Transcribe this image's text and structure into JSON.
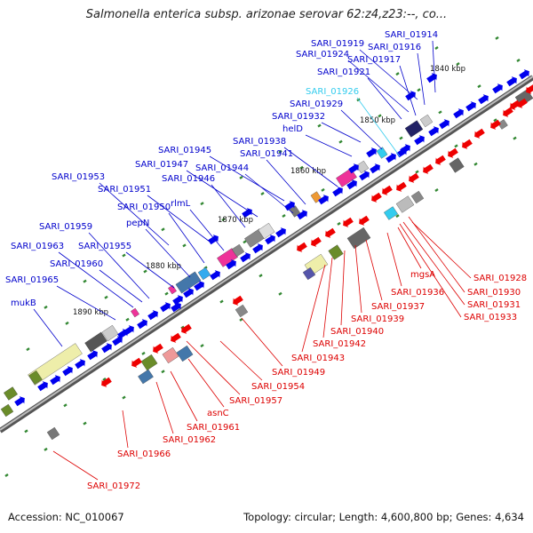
{
  "title": "Salmonella enterica subsp. arizonae serovar 62:z4,z23:--, co...",
  "footer": {
    "accession": "Accession: NC_010067",
    "summary": "Topology: circular; Length: 4,600,800 bp; Genes: 4,634"
  },
  "colors": {
    "forward_label": "#0000cc",
    "reverse_label": "#dd0000",
    "highlight_label": "#33ccee",
    "forward_arrow": "#0000ee",
    "reverse_arrow": "#ee0000",
    "backbone": "#888888",
    "tick": "#338833"
  },
  "scale_marks": [
    {
      "label": "1840 kbp"
    },
    {
      "label": "1850 kbp"
    },
    {
      "label": "1860 kbp"
    },
    {
      "label": "1870 kbp"
    },
    {
      "label": "1880 kbp"
    },
    {
      "label": "1890 kbp"
    }
  ],
  "forward_labels": [
    {
      "name": "SARI_01914",
      "color": "#0000cc"
    },
    {
      "name": "SARI_01919",
      "color": "#0000cc"
    },
    {
      "name": "SARI_01916",
      "color": "#0000cc"
    },
    {
      "name": "SARI_01924",
      "color": "#0000cc"
    },
    {
      "name": "SARI_01917",
      "color": "#0000cc"
    },
    {
      "name": "SARI_01921",
      "color": "#0000cc"
    },
    {
      "name": "SARI_01926",
      "color": "#33ccee"
    },
    {
      "name": "SARI_01929",
      "color": "#0000cc"
    },
    {
      "name": "SARI_01932",
      "color": "#0000cc"
    },
    {
      "name": "helD",
      "color": "#0000cc"
    },
    {
      "name": "SARI_01938",
      "color": "#0000cc"
    },
    {
      "name": "SARI_01945",
      "color": "#0000cc"
    },
    {
      "name": "SARI_01941",
      "color": "#0000cc"
    },
    {
      "name": "SARI_01947",
      "color": "#0000cc"
    },
    {
      "name": "SARI_01944",
      "color": "#0000cc"
    },
    {
      "name": "SARI_01953",
      "color": "#0000cc"
    },
    {
      "name": "SARI_01946",
      "color": "#0000cc"
    },
    {
      "name": "SARI_01951",
      "color": "#0000cc"
    },
    {
      "name": "rlmL",
      "color": "#0000cc"
    },
    {
      "name": "SARI_01950",
      "color": "#0000cc"
    },
    {
      "name": "pepN",
      "color": "#0000cc"
    },
    {
      "name": "SARI_01959",
      "color": "#0000cc"
    },
    {
      "name": "SARI_01963",
      "color": "#0000cc"
    },
    {
      "name": "SARI_01955",
      "color": "#0000cc"
    },
    {
      "name": "SARI_01960",
      "color": "#0000cc"
    },
    {
      "name": "SARI_01965",
      "color": "#0000cc"
    },
    {
      "name": "mukB",
      "color": "#0000cc"
    }
  ],
  "reverse_labels": [
    {
      "name": "SARI_01928"
    },
    {
      "name": "mgsA"
    },
    {
      "name": "SARI_01930"
    },
    {
      "name": "SARI_01936"
    },
    {
      "name": "SARI_01931"
    },
    {
      "name": "SARI_01937"
    },
    {
      "name": "SARI_01933"
    },
    {
      "name": "SARI_01939"
    },
    {
      "name": "SARI_01940"
    },
    {
      "name": "SARI_01942"
    },
    {
      "name": "SARI_01943"
    },
    {
      "name": "SARI_01949"
    },
    {
      "name": "SARI_01954"
    },
    {
      "name": "SARI_01957"
    },
    {
      "name": "asnC"
    },
    {
      "name": "SARI_01961"
    },
    {
      "name": "SARI_01962"
    },
    {
      "name": "SARI_01966"
    },
    {
      "name": "SARI_01972"
    }
  ]
}
